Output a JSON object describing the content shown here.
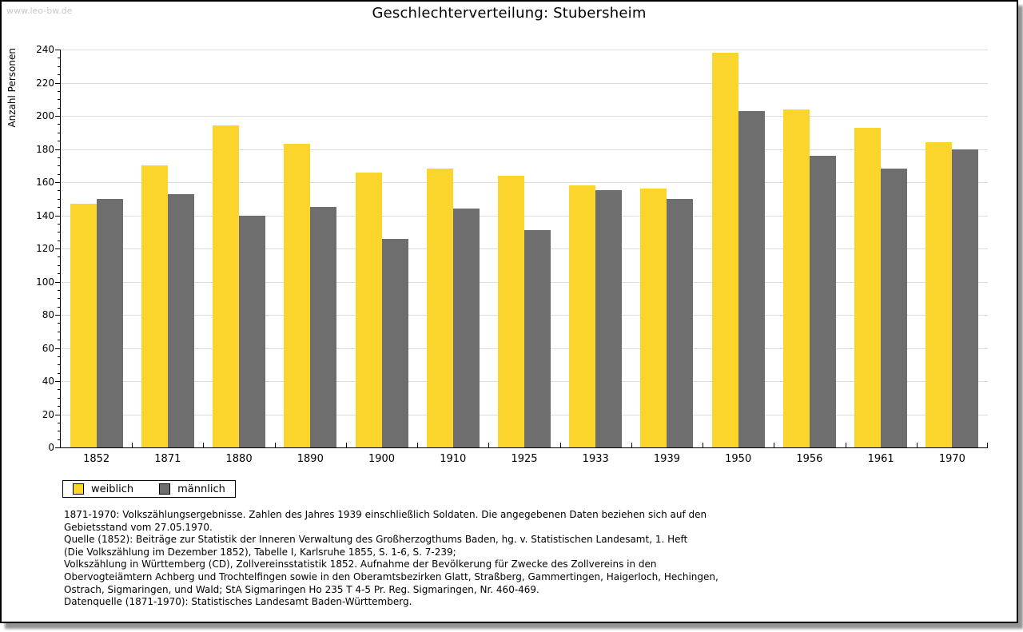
{
  "watermark": "www.leo-bw.de",
  "title": "Geschlechterverteilung: Stubersheim",
  "chart_data": {
    "type": "bar",
    "title": "Geschlechterverteilung: Stubersheim",
    "xlabel": "",
    "ylabel": "Anzahl Personen",
    "ylim": [
      0,
      240
    ],
    "ytick_major_step": 20,
    "ytick_minor_step": 5,
    "grid": true,
    "legend_position": "bottom-left",
    "categories": [
      "1852",
      "1871",
      "1880",
      "1890",
      "1900",
      "1910",
      "1925",
      "1933",
      "1939",
      "1950",
      "1956",
      "1961",
      "1970"
    ],
    "series": [
      {
        "name": "weiblich",
        "color": "#FBD42C",
        "values": [
          147,
          170,
          194,
          183,
          166,
          168,
          164,
          158,
          156,
          238,
          204,
          193,
          184
        ]
      },
      {
        "name": "männlich",
        "color": "#6E6E6E",
        "values": [
          150,
          153,
          140,
          145,
          126,
          144,
          131,
          155,
          150,
          203,
          176,
          168,
          180
        ]
      }
    ]
  },
  "legend": {
    "items": [
      {
        "label": "weiblich",
        "color": "#FBD42C"
      },
      {
        "label": "männlich",
        "color": "#6E6E6E"
      }
    ]
  },
  "footnotes": {
    "lines": [
      "1871-1970: Volkszählungsergebnisse. Zahlen des Jahres 1939 einschließlich Soldaten. Die angegebenen Daten beziehen sich auf den",
      "Gebietsstand vom 27.05.1970.",
      "Quelle (1852): Beiträge zur Statistik der Inneren Verwaltung des Großherzogthums Baden, hg. v. Statistischen Landesamt, 1. Heft",
      "(Die Volkszählung im Dezember 1852), Tabelle I, Karlsruhe 1855, S. 1-6, S. 7-239;",
      "Volkszählung in Württemberg (CD), Zollvereinsstatistik 1852. Aufnahme der Bevölkerung für Zwecke des Zollvereins in den",
      "Obervogteiämtern Achberg und Trochtelfingen sowie in den Oberamtsbezirken Glatt, Straßberg, Gammertingen, Haigerloch, Hechingen,",
      "Ostrach, Sigmaringen, und Wald; StA Sigmaringen Ho 235 T 4-5 Pr. Reg. Sigmaringen, Nr. 460-469."
    ],
    "datasource": "Datenquelle (1871-1970): Statistisches Landesamt Baden-Württemberg."
  },
  "colors": {
    "grid": "#dcdcdc",
    "axis": "#000000",
    "watermark": "#c9c9c9",
    "background": "#ffffff"
  }
}
